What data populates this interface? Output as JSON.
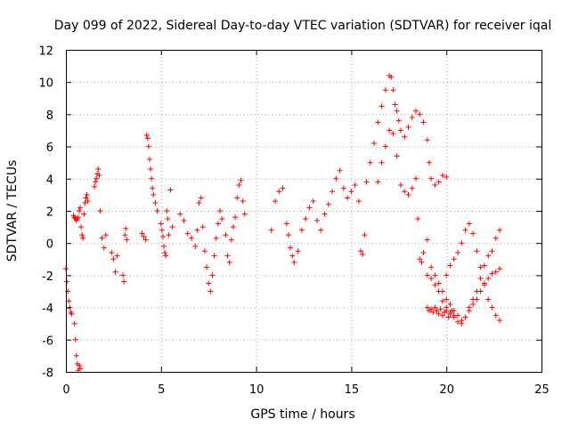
{
  "chart_data": {
    "type": "scatter",
    "title": "Day 099 of 2022, Sidereal Day-to-day VTEC variation (SDTVAR) for receiver iqal",
    "xlabel": "GPS time / hours",
    "ylabel": "SDTVAR / TECUs",
    "xlim": [
      0,
      25
    ],
    "ylim": [
      -8,
      12
    ],
    "xticks": [
      0,
      5,
      10,
      15,
      20,
      25
    ],
    "yticks": [
      -8,
      -6,
      -4,
      -2,
      0,
      2,
      4,
      6,
      8,
      10,
      12
    ],
    "grid": true,
    "marker": "+",
    "color": "#ff0000",
    "series": [
      {
        "name": "SDTVAR",
        "x": [
          0.0,
          0.05,
          0.1,
          0.15,
          0.2,
          0.25,
          0.3,
          0.45,
          0.5,
          0.55,
          0.6,
          0.65,
          0.7,
          0.75,
          0.4,
          0.45,
          0.5,
          0.55,
          0.6,
          0.65,
          0.7,
          0.75,
          0.8,
          0.85,
          0.9,
          0.95,
          1.0,
          1.05,
          1.1,
          1.15,
          1.5,
          1.55,
          1.6,
          1.65,
          1.7,
          1.75,
          1.8,
          1.9,
          2.0,
          2.1,
          2.4,
          2.5,
          2.6,
          2.7,
          3.0,
          3.05,
          3.1,
          3.15,
          3.2,
          4.0,
          4.1,
          4.2,
          4.25,
          4.3,
          4.35,
          4.4,
          4.45,
          4.5,
          4.55,
          4.6,
          4.7,
          4.8,
          5.0,
          5.05,
          5.1,
          5.15,
          5.2,
          5.25,
          5.3,
          5.35,
          5.4,
          5.5,
          5.6,
          6.0,
          6.2,
          6.4,
          6.6,
          6.8,
          6.9,
          7.0,
          7.1,
          7.2,
          7.3,
          7.4,
          7.5,
          7.6,
          7.7,
          7.8,
          7.9,
          8.0,
          8.1,
          8.2,
          8.4,
          8.5,
          8.6,
          8.7,
          8.8,
          8.9,
          9.0,
          9.1,
          9.2,
          9.3,
          9.4,
          10.8,
          11.0,
          11.2,
          11.4,
          11.6,
          11.7,
          11.8,
          11.9,
          12.0,
          12.2,
          12.4,
          12.6,
          12.8,
          13.0,
          13.2,
          13.4,
          13.6,
          13.8,
          14.0,
          14.2,
          14.4,
          14.6,
          14.8,
          15.0,
          15.2,
          15.4,
          15.5,
          15.6,
          15.7,
          15.8,
          16.0,
          16.2,
          16.4,
          16.6,
          16.8,
          17.0,
          17.1,
          17.2,
          17.3,
          17.4,
          17.5,
          17.6,
          17.8,
          18.0,
          18.2,
          18.4,
          18.6,
          18.8,
          19.0,
          19.1,
          19.2,
          19.4,
          19.6,
          19.8,
          20.0,
          16.4,
          16.6,
          16.8,
          17.0,
          17.2,
          17.4,
          17.6,
          17.8,
          18.0,
          18.2,
          18.4,
          18.5,
          18.6,
          18.7,
          18.8,
          19.0,
          19.2,
          19.4,
          19.6,
          19.8,
          20.0,
          20.2,
          20.4,
          20.6,
          20.8,
          21.0,
          21.2,
          21.4,
          21.6,
          21.8,
          22.0,
          22.2,
          22.4,
          22.6,
          22.8,
          19.0,
          19.2,
          19.4,
          19.6,
          19.8,
          20.0,
          20.2,
          20.4,
          20.6,
          20.8,
          21.0,
          21.2,
          21.4,
          21.6,
          21.8,
          22.0,
          22.2,
          22.4,
          22.6,
          22.8,
          20.0,
          20.2,
          20.4,
          20.6,
          20.8,
          21.0,
          21.2,
          21.4,
          21.6,
          21.8,
          22.0,
          22.2,
          22.4,
          22.6,
          22.8,
          19.0,
          19.1,
          19.2,
          19.3,
          19.4,
          19.5,
          19.6,
          19.7,
          19.8,
          19.9,
          20.0,
          20.1,
          20.2,
          20.3,
          20.4
        ],
        "y": [
          -1.6,
          -2.4,
          -3.0,
          -3.6,
          -4.0,
          -4.3,
          -4.4,
          -5.0,
          -6.0,
          -7.0,
          -7.5,
          -7.9,
          -7.6,
          -7.8,
          1.7,
          1.6,
          1.5,
          1.4,
          1.5,
          1.6,
          2.0,
          2.2,
          1.0,
          0.5,
          0.3,
          1.8,
          2.5,
          2.8,
          3.0,
          2.6,
          3.5,
          3.8,
          4.0,
          4.3,
          4.6,
          4.2,
          2.0,
          0.3,
          -0.3,
          0.5,
          -0.6,
          -1.0,
          -1.8,
          -0.8,
          -2.0,
          -2.4,
          0.5,
          0.9,
          0.2,
          0.6,
          0.4,
          0.2,
          6.7,
          6.5,
          6.0,
          5.2,
          4.6,
          4.0,
          3.4,
          3.0,
          2.5,
          2.0,
          1.2,
          0.8,
          0.4,
          -0.2,
          -0.6,
          -0.8,
          2.0,
          1.5,
          0.5,
          3.3,
          1.0,
          1.8,
          1.4,
          0.6,
          0.3,
          -0.2,
          0.8,
          2.5,
          2.8,
          1.0,
          -0.5,
          -1.5,
          -2.5,
          -3.0,
          -2.0,
          -0.8,
          0.3,
          1.2,
          2.0,
          1.5,
          0.5,
          -0.8,
          -1.2,
          0.2,
          1.0,
          1.6,
          2.8,
          3.6,
          3.9,
          2.6,
          1.8,
          0.8,
          2.6,
          3.2,
          3.4,
          1.2,
          0.5,
          -0.3,
          -0.8,
          -1.2,
          -0.5,
          0.8,
          1.5,
          2.2,
          2.6,
          1.4,
          0.8,
          1.8,
          2.4,
          3.2,
          4.0,
          4.5,
          3.4,
          2.8,
          3.2,
          3.6,
          2.6,
          -0.5,
          -0.7,
          0.5,
          3.8,
          5.0,
          6.2,
          7.5,
          8.5,
          9.5,
          10.4,
          10.3,
          9.5,
          8.6,
          8.2,
          7.6,
          7.0,
          6.6,
          7.2,
          7.8,
          8.2,
          8.0,
          7.5,
          6.4,
          5.0,
          4.0,
          3.6,
          3.8,
          4.2,
          4.1,
          3.8,
          5.0,
          6.0,
          7.0,
          6.8,
          5.4,
          3.6,
          3.2,
          3.0,
          3.4,
          4.0,
          1.5,
          -1.0,
          -1.2,
          -0.6,
          0.2,
          -1.5,
          -2.0,
          -2.5,
          -3.0,
          -3.5,
          -3.8,
          -4.2,
          -4.5,
          -4.8,
          -4.6,
          -4.2,
          -3.8,
          -3.5,
          -3.0,
          -2.6,
          -2.2,
          -1.9,
          -1.8,
          -1.6,
          -2.0,
          -2.2,
          -2.6,
          -3.0,
          -3.6,
          -4.0,
          -4.3,
          -4.6,
          -4.9,
          -5.0,
          -4.6,
          -4.0,
          -3.5,
          -3.0,
          -2.2,
          -1.4,
          -0.8,
          -0.5,
          0.3,
          0.8,
          -2.0,
          -1.4,
          -1.0,
          -0.6,
          0.0,
          0.8,
          1.2,
          0.6,
          -0.5,
          -1.5,
          -2.5,
          -3.5,
          -4.0,
          -4.5,
          -4.8,
          -4.0,
          -4.2,
          -4.1,
          -4.3,
          -4.0,
          -4.2,
          -4.4,
          -4.1,
          -4.5,
          -4.3,
          -4.2,
          -4.6,
          -4.4,
          -4.2,
          -4.5
        ]
      }
    ]
  }
}
